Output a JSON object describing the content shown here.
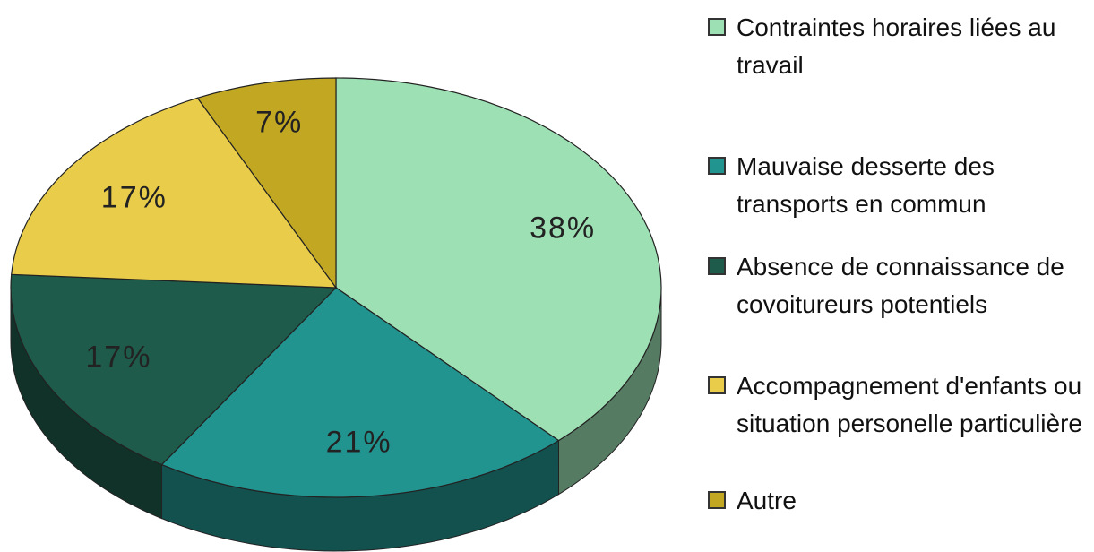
{
  "chart_data": {
    "type": "pie",
    "categories": [
      "Contraintes horaires liées au travail",
      "Mauvaise desserte des transports en commun",
      "Absence de connaissance de covoitureurs potentiels",
      "Accompagnement d'enfants ou situation personelle particulière",
      "Autre"
    ],
    "values": [
      38,
      21,
      17,
      17,
      7
    ],
    "value_labels": [
      "38%",
      "21%",
      "17%",
      "17%",
      "7%"
    ],
    "colors": [
      "#9de0b4",
      "#229490",
      "#1e5b4a",
      "#e8cc4a",
      "#c2a822"
    ]
  }
}
